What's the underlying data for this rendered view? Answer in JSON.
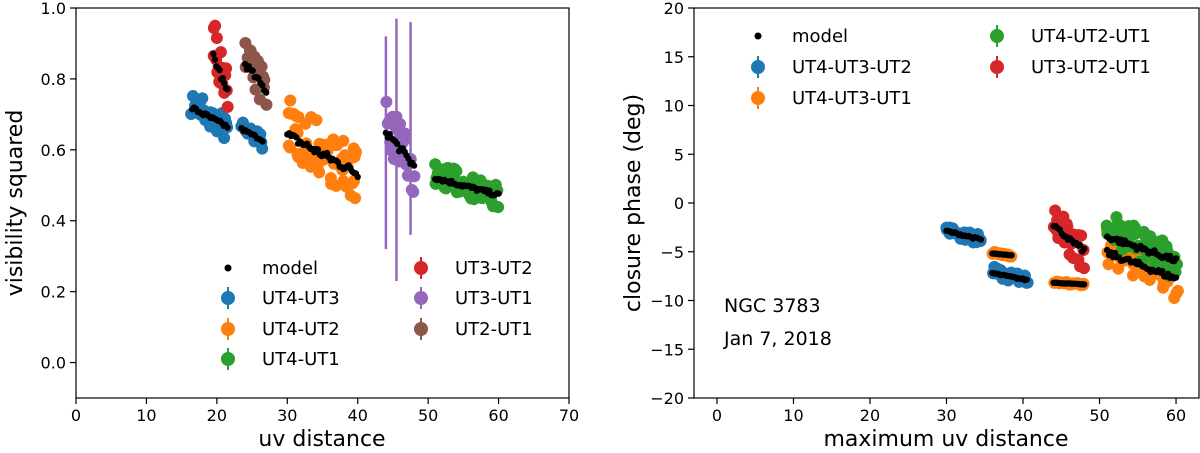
{
  "chart_data": [
    {
      "type": "scatter",
      "xlabel": "uv distance",
      "ylabel": "visibility squared",
      "xlim": [
        0,
        70
      ],
      "ylim": [
        -0.1,
        1.0
      ],
      "xticks": [
        0,
        10,
        20,
        30,
        40,
        50,
        60,
        70
      ],
      "yticks": [
        0.0,
        0.2,
        0.4,
        0.6,
        0.8,
        1.0
      ],
      "xtick_labels": [
        "0",
        "10",
        "20",
        "30",
        "40",
        "50",
        "60",
        "70"
      ],
      "ytick_labels": [
        "0.0",
        "0.2",
        "0.4",
        "0.6",
        "0.8",
        "1.0"
      ],
      "legend_position": "lower-center",
      "legend_columns": 2,
      "series": [
        {
          "name": "model",
          "color": "#000000",
          "marker": "small-dot"
        },
        {
          "name": "UT4-UT3",
          "color": "#1f77b4",
          "clusters": [
            {
              "x": [
                16.5,
                21.5
              ],
              "y": [
                0.77,
                0.62
              ]
            },
            {
              "x": [
                23.5,
                26.5
              ],
              "y": [
                0.69,
                0.6
              ]
            }
          ]
        },
        {
          "name": "UT4-UT2",
          "color": "#ff7f0e",
          "clusters": [
            {
              "x": [
                30,
                40
              ],
              "y": [
                0.75,
                0.44
              ]
            }
          ]
        },
        {
          "name": "UT4-UT1",
          "color": "#2ca02c",
          "clusters": [
            {
              "x": [
                51,
                60
              ],
              "y": [
                0.57,
                0.43
              ]
            }
          ]
        },
        {
          "name": "UT3-UT2",
          "color": "#d62728",
          "clusters": [
            {
              "x": [
                19.5,
                21.5
              ],
              "y": [
                0.97,
                0.67
              ]
            }
          ]
        },
        {
          "name": "UT3-UT1",
          "color": "#9467bd",
          "clusters": [
            {
              "x": [
                44,
                48
              ],
              "y": [
                0.75,
                0.47
              ]
            }
          ],
          "error_bars": [
            {
              "x": 44,
              "y": 0.62,
              "err": 0.3
            },
            {
              "x": 45.5,
              "y": 0.6,
              "err": 0.37
            },
            {
              "x": 47.5,
              "y": 0.66,
              "err": 0.3
            }
          ]
        },
        {
          "name": "UT2-UT1",
          "color": "#8c564b",
          "clusters": [
            {
              "x": [
                24,
                27
              ],
              "y": [
                0.92,
                0.7
              ]
            }
          ]
        }
      ]
    },
    {
      "type": "scatter",
      "xlabel": "maximum uv distance",
      "ylabel": "closure phase (deg)",
      "xlim": [
        -3,
        63
      ],
      "ylim": [
        -20,
        20
      ],
      "xticks": [
        0,
        10,
        20,
        30,
        40,
        50,
        60
      ],
      "yticks": [
        -20,
        -15,
        -10,
        -5,
        0,
        5,
        10,
        15,
        20
      ],
      "xtick_labels": [
        "0",
        "10",
        "20",
        "30",
        "40",
        "50",
        "60"
      ],
      "ytick_labels": [
        "−20",
        "−15",
        "−10",
        "−5",
        "0",
        "5",
        "10",
        "15",
        "20"
      ],
      "legend_position": "top-left",
      "legend_columns": 2,
      "annotations": [
        "NGC 3783",
        "Jan 7, 2018"
      ],
      "series": [
        {
          "name": "model",
          "color": "#000000",
          "marker": "small-dot"
        },
        {
          "name": "UT4-UT3-UT2",
          "color": "#1f77b4",
          "clusters": [
            {
              "x": [
                30,
                34.5
              ],
              "y": [
                -2.0,
                -4.5
              ]
            },
            {
              "x": [
                36,
                40.5
              ],
              "y": [
                -6.5,
                -8.5
              ]
            }
          ]
        },
        {
          "name": "UT4-UT3-UT1",
          "color": "#ff7f0e",
          "clusters": [
            {
              "x": [
                36,
                38.5
              ],
              "y": [
                -5.0,
                -5.5
              ]
            },
            {
              "x": [
                44,
                48
              ],
              "y": [
                -8.0,
                -8.5
              ]
            },
            {
              "x": [
                51,
                60
              ],
              "y": [
                -2.5,
                -10.0
              ]
            }
          ]
        },
        {
          "name": "UT4-UT2-UT1",
          "color": "#2ca02c",
          "clusters": [
            {
              "x": [
                51,
                60
              ],
              "y": [
                -1.0,
                -8.0
              ]
            }
          ]
        },
        {
          "name": "UT3-UT2-UT1",
          "color": "#d62728",
          "clusters": [
            {
              "x": [
                44,
                48
              ],
              "y": [
                0.0,
                -7.0
              ]
            }
          ]
        }
      ]
    }
  ]
}
